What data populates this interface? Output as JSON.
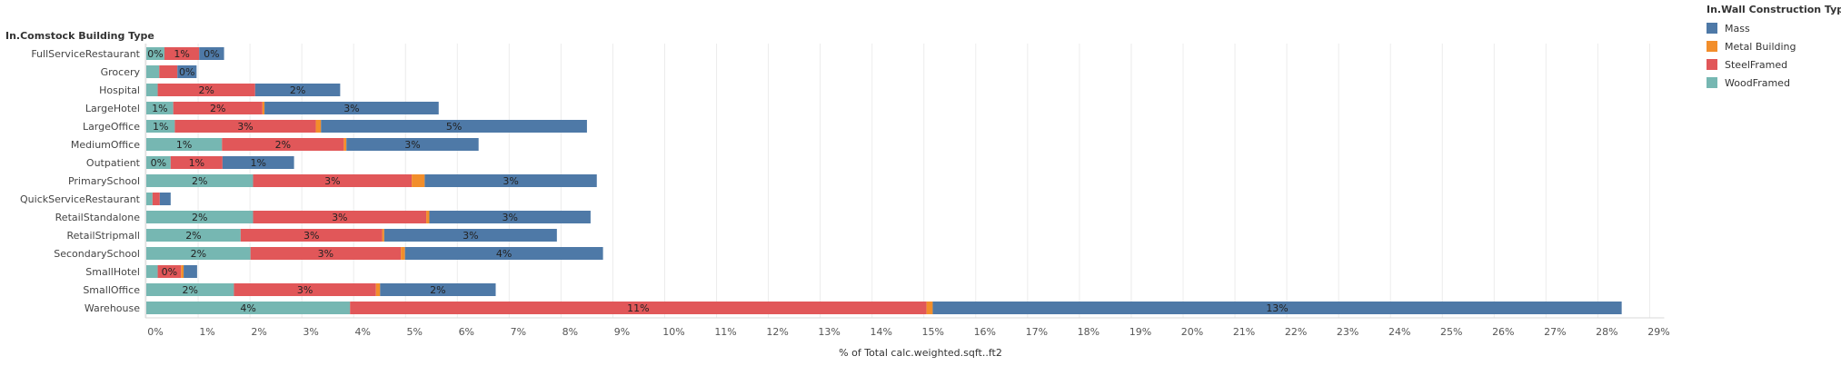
{
  "row_header": "In.Comstock Building Type",
  "chart_data": {
    "type": "bar",
    "orientation": "horizontal",
    "stacked": true,
    "categories": [
      "FullServiceRestaurant",
      "Grocery",
      "Hospital",
      "LargeHotel",
      "LargeOffice",
      "MediumOffice",
      "Outpatient",
      "PrimarySchool",
      "QuickServiceRestaurant",
      "RetailStandalone",
      "RetailStripmall",
      "SecondarySchool",
      "SmallHotel",
      "SmallOffice",
      "Warehouse"
    ],
    "series": [
      {
        "name": "WoodFramed",
        "color": "#76b7b2",
        "values": [
          0.35,
          0.25,
          0.22,
          0.52,
          0.55,
          1.46,
          0.47,
          2.06,
          0.12,
          2.06,
          1.82,
          2.01,
          0.22,
          1.69,
          3.93
        ],
        "labels": [
          "0%",
          "",
          "",
          "1%",
          "1%",
          "1%",
          "0%",
          "2%",
          "",
          "2%",
          "2%",
          "2%",
          "",
          "2%",
          "4%"
        ]
      },
      {
        "name": "SteelFramed",
        "color": "#e15759",
        "values": [
          0.67,
          0.35,
          1.88,
          1.72,
          2.72,
          2.35,
          1.0,
          3.06,
          0.14,
          3.34,
          2.73,
          2.9,
          0.45,
          2.74,
          11.12
        ],
        "labels": [
          "1%",
          "",
          "2%",
          "2%",
          "3%",
          "2%",
          "1%",
          "3%",
          "",
          "3%",
          "3%",
          "3%",
          "0%",
          "3%",
          "11%"
        ]
      },
      {
        "name": "Metal Building",
        "color": "#f28e2b",
        "values": [
          0.0,
          0.0,
          0.0,
          0.04,
          0.1,
          0.05,
          0.0,
          0.25,
          0.0,
          0.06,
          0.04,
          0.08,
          0.05,
          0.08,
          0.12
        ],
        "labels": [
          "",
          "",
          "",
          "",
          "",
          "",
          "",
          "",
          "",
          "",
          "",
          "",
          "",
          "",
          ""
        ]
      },
      {
        "name": "Mass",
        "color": "#4e79a7",
        "values": [
          0.48,
          0.37,
          1.64,
          3.36,
          5.13,
          2.55,
          1.38,
          3.32,
          0.21,
          3.11,
          3.33,
          3.82,
          0.26,
          2.23,
          13.29
        ],
        "labels": [
          "0%",
          "0%",
          "2%",
          "3%",
          "5%",
          "3%",
          "1%",
          "3%",
          "",
          "3%",
          "3%",
          "4%",
          "",
          "2%",
          "13%"
        ]
      }
    ],
    "xlabel": "% of Total calc.weighted.sqft..ft2",
    "xlim": [
      0,
      29
    ],
    "x_ticks": [
      "0%",
      "1%",
      "2%",
      "3%",
      "4%",
      "5%",
      "6%",
      "7%",
      "8%",
      "9%",
      "10%",
      "11%",
      "12%",
      "13%",
      "14%",
      "15%",
      "16%",
      "17%",
      "18%",
      "19%",
      "20%",
      "21%",
      "22%",
      "23%",
      "24%",
      "25%",
      "26%",
      "27%",
      "28%",
      "29%"
    ],
    "grid": true,
    "legend": {
      "title": "In.Wall Construction Type",
      "position": "right",
      "items": [
        {
          "name": "Mass",
          "color": "#4e79a7"
        },
        {
          "name": "Metal Building",
          "color": "#f28e2b"
        },
        {
          "name": "SteelFramed",
          "color": "#e15759"
        },
        {
          "name": "WoodFramed",
          "color": "#76b7b2"
        }
      ]
    }
  }
}
